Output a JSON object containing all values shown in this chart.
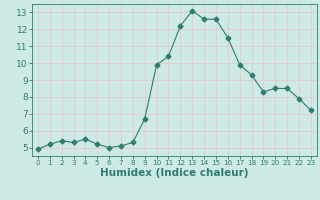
{
  "x": [
    0,
    1,
    2,
    3,
    4,
    5,
    6,
    7,
    8,
    9,
    10,
    11,
    12,
    13,
    14,
    15,
    16,
    17,
    18,
    19,
    20,
    21,
    22,
    23
  ],
  "y": [
    4.9,
    5.2,
    5.4,
    5.3,
    5.5,
    5.2,
    5.0,
    5.1,
    5.3,
    6.7,
    9.9,
    10.4,
    12.2,
    13.1,
    12.6,
    12.6,
    11.5,
    9.9,
    9.3,
    8.3,
    8.5,
    8.5,
    7.9,
    7.2
  ],
  "line_color": "#2e7d6e",
  "marker": "D",
  "marker_size": 2.5,
  "bg_color": "#ceeae7",
  "grid_color": "#e8c8c8",
  "xlabel": "Humidex (Indice chaleur)",
  "xlim": [
    -0.5,
    23.5
  ],
  "ylim": [
    4.5,
    13.5
  ],
  "yticks": [
    5,
    6,
    7,
    8,
    9,
    10,
    11,
    12,
    13
  ],
  "xticks": [
    0,
    1,
    2,
    3,
    4,
    5,
    6,
    7,
    8,
    9,
    10,
    11,
    12,
    13,
    14,
    15,
    16,
    17,
    18,
    19,
    20,
    21,
    22,
    23
  ],
  "tick_color": "#2e7d6e",
  "label_color": "#2e7d6e",
  "xlabel_fontsize": 7.5,
  "tick_fontsize": 6.5
}
